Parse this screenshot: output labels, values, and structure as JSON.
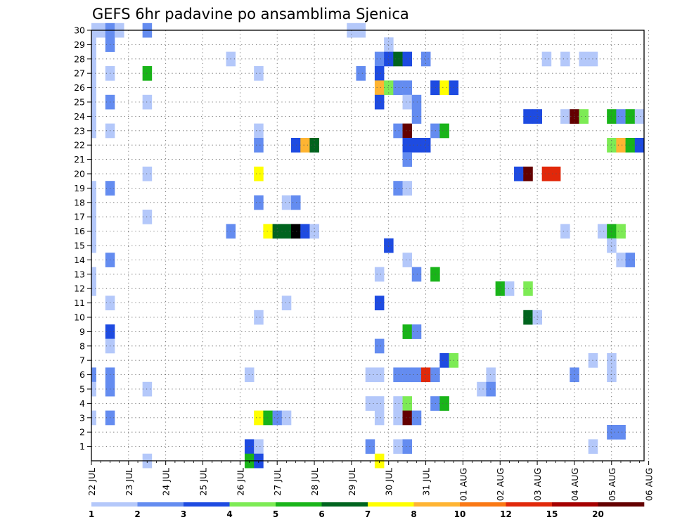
{
  "chart_data": {
    "type": "heatmap",
    "title": "GEFS 6hr padavine po ansamblima Sjenica",
    "xlabel": "",
    "ylabel": "",
    "x_ticks": [
      "22 JUL",
      "23 JUL",
      "24 JUL",
      "25 JUL",
      "26 JUL",
      "27 JUL",
      "28 JUL",
      "29 JUL",
      "30 JUL",
      "31 JUL",
      "01 AUG",
      "02 AUG",
      "03 AUG",
      "04 AUG",
      "05 AUG",
      "06 AUG"
    ],
    "y_ticks": [
      "1",
      "2",
      "3",
      "4",
      "5",
      "6",
      "7",
      "8",
      "9",
      "10",
      "11",
      "12",
      "13",
      "14",
      "15",
      "16",
      "17",
      "18",
      "19",
      "20",
      "21",
      "22",
      "23",
      "24",
      "25",
      "26",
      "27",
      "28",
      "29",
      "30"
    ],
    "xlim": [
      0,
      60
    ],
    "ylim": [
      0,
      30
    ],
    "grid": true,
    "colorbar": {
      "labels": [
        "1",
        "2",
        "3",
        "4",
        "5",
        "6",
        "7",
        "8",
        "10",
        "12",
        "15",
        "20"
      ],
      "colors": [
        "#b4c8fa",
        "#648cf0",
        "#1e4be1",
        "#7deb55",
        "#19b419",
        "#00641e",
        "#ffff00",
        "#ffb432",
        "#fa7814",
        "#e1280a",
        "#a50000",
        "#640000"
      ]
    },
    "cells": [
      [
        0,
        30,
        1
      ],
      [
        0,
        29,
        1
      ],
      [
        0,
        28,
        1
      ],
      [
        0,
        27,
        1
      ],
      [
        0,
        26,
        1
      ],
      [
        0,
        25,
        1
      ],
      [
        0,
        24,
        1
      ],
      [
        0,
        23,
        1
      ],
      [
        0,
        19,
        1
      ],
      [
        0,
        18,
        1
      ],
      [
        0,
        17,
        1
      ],
      [
        0,
        16,
        1
      ],
      [
        0,
        15,
        1
      ],
      [
        0,
        13,
        1
      ],
      [
        0,
        12,
        1
      ],
      [
        0,
        6,
        2
      ],
      [
        0,
        5,
        1
      ],
      [
        0,
        3,
        1
      ],
      [
        1,
        30,
        1
      ],
      [
        2,
        30,
        2
      ],
      [
        2,
        29,
        2
      ],
      [
        2,
        27,
        1
      ],
      [
        2,
        25,
        2
      ],
      [
        2,
        23,
        1
      ],
      [
        2,
        19,
        2
      ],
      [
        2,
        14,
        2
      ],
      [
        2,
        11,
        1
      ],
      [
        2,
        9,
        3
      ],
      [
        2,
        8,
        1
      ],
      [
        2,
        6,
        2
      ],
      [
        2,
        5,
        2
      ],
      [
        2,
        3,
        2
      ],
      [
        3,
        30,
        1
      ],
      [
        6,
        30,
        2
      ],
      [
        6,
        27,
        5
      ],
      [
        6,
        25,
        1
      ],
      [
        6,
        20,
        1
      ],
      [
        6,
        17,
        1
      ],
      [
        6,
        5,
        1
      ],
      [
        6,
        0,
        1
      ],
      [
        15,
        28,
        1
      ],
      [
        15,
        16,
        2
      ],
      [
        17,
        6,
        1
      ],
      [
        17,
        1,
        3
      ],
      [
        17,
        0,
        5
      ],
      [
        18,
        27,
        1
      ],
      [
        18,
        23,
        1
      ],
      [
        18,
        22,
        2
      ],
      [
        18,
        20,
        7
      ],
      [
        18,
        18,
        2
      ],
      [
        18,
        10,
        1
      ],
      [
        18,
        3,
        7
      ],
      [
        18,
        1,
        1
      ],
      [
        18,
        0,
        3
      ],
      [
        19,
        16,
        7
      ],
      [
        19,
        3,
        5
      ],
      [
        20,
        16,
        6
      ],
      [
        20,
        3,
        2
      ],
      [
        21,
        16,
        6
      ],
      [
        21,
        18,
        1
      ],
      [
        21,
        11,
        1
      ],
      [
        21,
        3,
        1
      ],
      [
        22,
        16,
        15
      ],
      [
        22,
        22,
        3
      ],
      [
        22,
        18,
        2
      ],
      [
        23,
        16,
        3
      ],
      [
        23,
        22,
        8
      ],
      [
        24,
        16,
        1
      ],
      [
        24,
        22,
        6
      ],
      [
        28,
        30,
        1
      ],
      [
        29,
        30,
        1
      ],
      [
        29,
        27,
        2
      ],
      [
        30,
        6,
        1
      ],
      [
        30,
        4,
        1
      ],
      [
        30,
        1,
        2
      ],
      [
        31,
        28,
        2
      ],
      [
        31,
        27,
        3
      ],
      [
        31,
        26,
        8
      ],
      [
        31,
        25,
        3
      ],
      [
        31,
        13,
        1
      ],
      [
        31,
        11,
        3
      ],
      [
        31,
        8,
        2
      ],
      [
        31,
        6,
        1
      ],
      [
        31,
        4,
        1
      ],
      [
        31,
        3,
        1
      ],
      [
        31,
        0,
        7
      ],
      [
        32,
        29,
        1
      ],
      [
        32,
        28,
        3
      ],
      [
        32,
        26,
        4
      ],
      [
        32,
        15,
        3
      ],
      [
        33,
        28,
        6
      ],
      [
        33,
        26,
        2
      ],
      [
        33,
        23,
        2
      ],
      [
        33,
        19,
        2
      ],
      [
        33,
        6,
        2
      ],
      [
        33,
        4,
        1
      ],
      [
        33,
        3,
        1
      ],
      [
        33,
        1,
        1
      ],
      [
        34,
        28,
        3
      ],
      [
        34,
        26,
        2
      ],
      [
        34,
        25,
        1
      ],
      [
        34,
        23,
        12
      ],
      [
        34,
        22,
        3
      ],
      [
        34,
        21,
        2
      ],
      [
        34,
        19,
        1
      ],
      [
        34,
        14,
        1
      ],
      [
        34,
        9,
        5
      ],
      [
        34,
        6,
        2
      ],
      [
        34,
        4,
        4
      ],
      [
        34,
        3,
        12
      ],
      [
        34,
        1,
        2
      ],
      [
        35,
        24,
        2
      ],
      [
        35,
        25,
        2
      ],
      [
        35,
        22,
        3
      ],
      [
        35,
        13,
        2
      ],
      [
        35,
        9,
        2
      ],
      [
        35,
        6,
        2
      ],
      [
        35,
        3,
        2
      ],
      [
        36,
        28,
        2
      ],
      [
        36,
        22,
        3
      ],
      [
        36,
        6,
        10
      ],
      [
        37,
        26,
        3
      ],
      [
        37,
        23,
        2
      ],
      [
        37,
        13,
        5
      ],
      [
        37,
        6,
        2
      ],
      [
        37,
        4,
        2
      ],
      [
        38,
        26,
        7
      ],
      [
        38,
        23,
        5
      ],
      [
        38,
        7,
        3
      ],
      [
        38,
        4,
        5
      ],
      [
        39,
        26,
        3
      ],
      [
        39,
        7,
        4
      ],
      [
        42,
        5,
        1
      ],
      [
        43,
        6,
        1
      ],
      [
        43,
        5,
        2
      ],
      [
        44,
        12,
        5
      ],
      [
        45,
        12,
        1
      ],
      [
        46,
        20,
        3
      ],
      [
        47,
        24,
        3
      ],
      [
        47,
        20,
        12
      ],
      [
        47,
        12,
        4
      ],
      [
        47,
        10,
        6
      ],
      [
        48,
        24,
        3
      ],
      [
        48,
        10,
        1
      ],
      [
        49,
        20,
        10
      ],
      [
        49,
        28,
        1
      ],
      [
        50,
        20,
        10
      ],
      [
        51,
        28,
        1
      ],
      [
        51,
        24,
        1
      ],
      [
        51,
        16,
        1
      ],
      [
        52,
        24,
        12
      ],
      [
        52,
        6,
        2
      ],
      [
        53,
        28,
        1
      ],
      [
        53,
        24,
        4
      ],
      [
        54,
        28,
        1
      ],
      [
        54,
        7,
        1
      ],
      [
        54,
        1,
        1
      ],
      [
        55,
        16,
        1
      ],
      [
        56,
        24,
        5
      ],
      [
        56,
        22,
        4
      ],
      [
        56,
        16,
        5
      ],
      [
        56,
        15,
        1
      ],
      [
        56,
        7,
        1
      ],
      [
        56,
        6,
        1
      ],
      [
        56,
        2,
        2
      ],
      [
        57,
        24,
        2
      ],
      [
        57,
        22,
        8
      ],
      [
        57,
        16,
        4
      ],
      [
        57,
        14,
        1
      ],
      [
        57,
        2,
        2
      ],
      [
        58,
        24,
        5
      ],
      [
        58,
        22,
        5
      ],
      [
        58,
        14,
        2
      ],
      [
        59,
        24,
        1
      ],
      [
        59,
        22,
        3
      ],
      [
        60,
        23,
        1
      ]
    ]
  }
}
